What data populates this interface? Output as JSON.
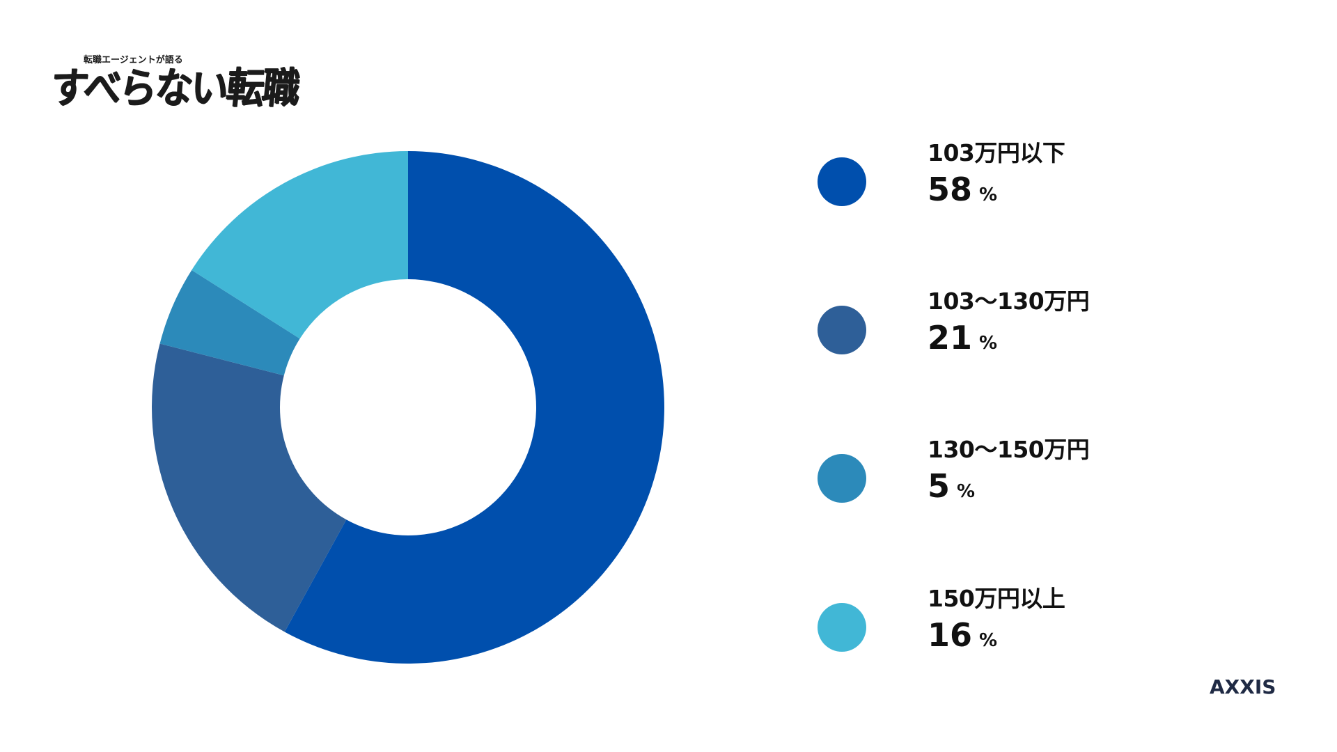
{
  "logo": {
    "subtitle": "転職エージェントが語る",
    "title": "すべらない転職"
  },
  "brand": "AXXIS",
  "chart_data": {
    "type": "pie",
    "donut": true,
    "categories": [
      "103万円以下",
      "103〜130万円",
      "130〜150万円",
      "150万円以上"
    ],
    "values": [
      58,
      21,
      5,
      16
    ],
    "unit": "%",
    "colors": [
      "#004fad",
      "#2e5f98",
      "#2c8aba",
      "#41b7d6"
    ],
    "start_angle_deg": 0,
    "direction": "clockwise",
    "legend_position": "right"
  }
}
